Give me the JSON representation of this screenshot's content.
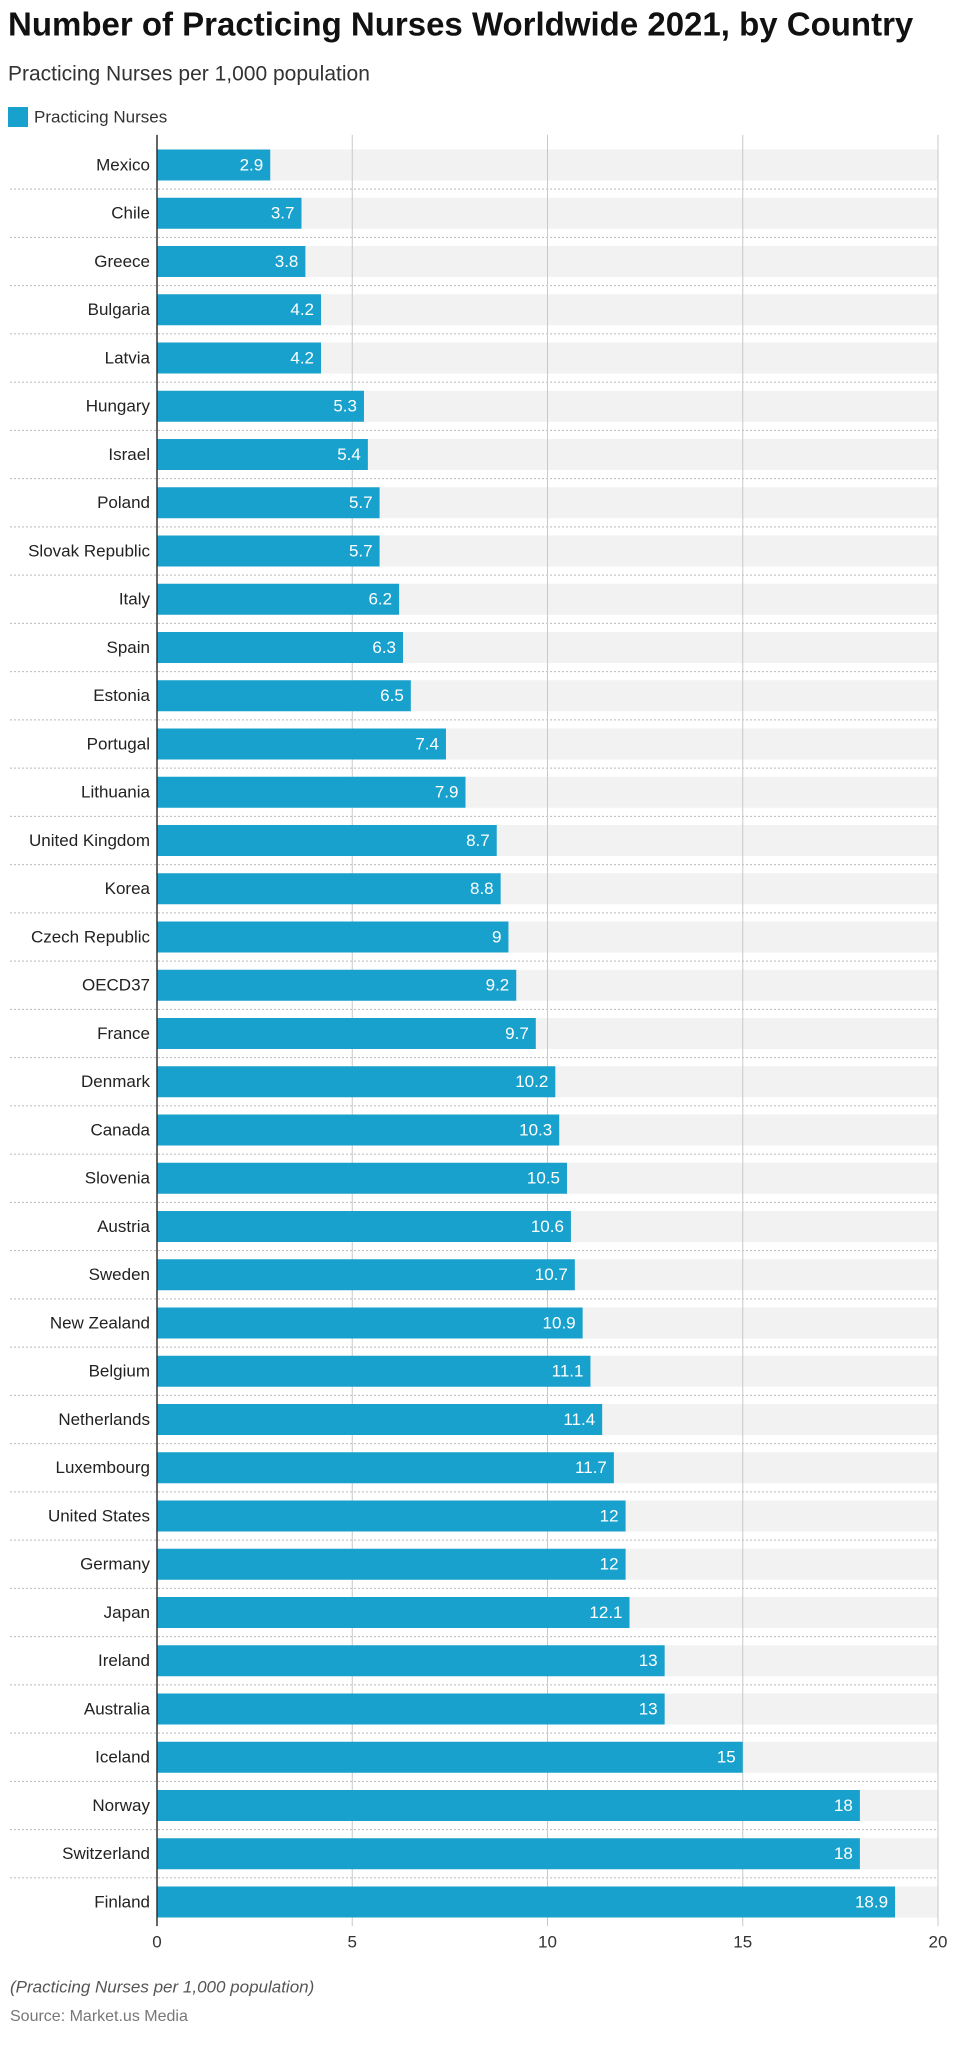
{
  "chart_data": {
    "type": "bar",
    "title": "Number of Practicing Nurses Worldwide 2021, by Country",
    "subtitle": "Practicing Nurses per 1,000 population",
    "categories": [
      "Mexico",
      "Chile",
      "Greece",
      "Bulgaria",
      "Latvia",
      "Hungary",
      "Israel",
      "Poland",
      "Slovak Republic",
      "Italy",
      "Spain",
      "Estonia",
      "Portugal",
      "Lithuania",
      "United Kingdom",
      "Korea",
      "Czech Republic",
      "OECD37",
      "France",
      "Denmark",
      "Canada",
      "Slovenia",
      "Austria",
      "Sweden",
      "New Zealand",
      "Belgium",
      "Netherlands",
      "Luxembourg",
      "United States",
      "Germany",
      "Japan",
      "Ireland",
      "Australia",
      "Iceland",
      "Norway",
      "Switzerland",
      "Finland"
    ],
    "series": [
      {
        "name": "Practicing Nurses",
        "color": "#18a1cd",
        "values": [
          2.9,
          3.7,
          3.8,
          4.2,
          4.2,
          5.3,
          5.4,
          5.7,
          5.7,
          6.2,
          6.3,
          6.5,
          7.4,
          7.9,
          8.7,
          8.8,
          9,
          9.2,
          9.7,
          10.2,
          10.3,
          10.5,
          10.6,
          10.7,
          10.9,
          11.1,
          11.4,
          11.7,
          12,
          12,
          12.1,
          13,
          13,
          15,
          18,
          18,
          18.9
        ]
      }
    ],
    "xlim": [
      0,
      20
    ],
    "xticks": [
      0,
      5,
      10,
      15,
      20
    ],
    "grid": true,
    "note": "(Practicing Nurses per 1,000 population)",
    "source": "Source: Market.us Media"
  }
}
